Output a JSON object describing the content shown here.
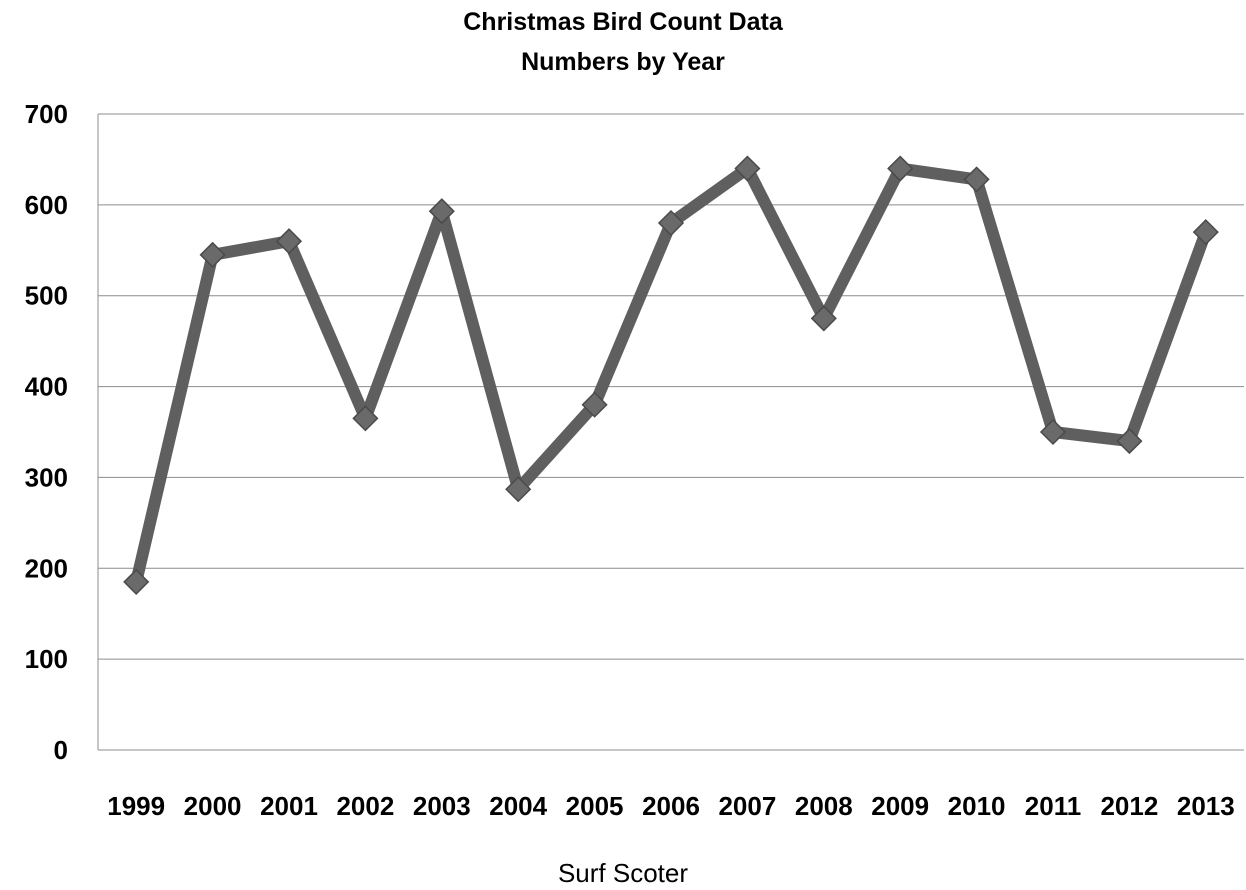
{
  "chart_data": {
    "type": "line",
    "title": "Christmas Bird Count Data",
    "subtitle": "Numbers by Year",
    "xlabel": "Surf Scoter",
    "ylabel": "",
    "categories": [
      "1999",
      "2000",
      "2001",
      "2002",
      "2003",
      "2004",
      "2005",
      "2006",
      "2007",
      "2008",
      "2009",
      "2010",
      "2011",
      "2012",
      "2013"
    ],
    "series": [
      {
        "values": [
          185,
          545,
          560,
          365,
          593,
          287,
          380,
          580,
          640,
          475,
          640,
          628,
          350,
          340,
          570
        ]
      }
    ],
    "ylim": [
      0,
      700
    ],
    "yticks": [
      "0",
      "100",
      "200",
      "300",
      "400",
      "500",
      "600",
      "700"
    ],
    "grid": true,
    "legend": "none",
    "colors": {
      "line": "#5f5f5f",
      "marker": "#6a6a6a",
      "grid": "#8c8c8c"
    }
  }
}
